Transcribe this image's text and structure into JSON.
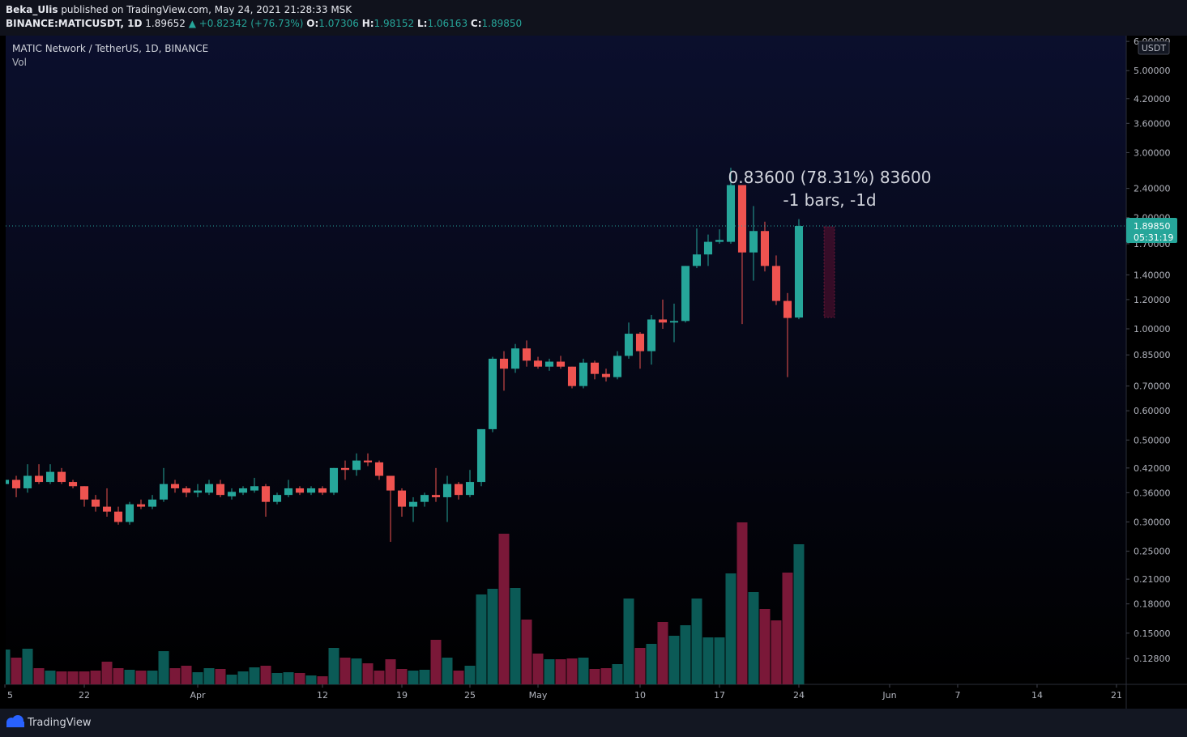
{
  "header": {
    "author": "Beka_Ulis",
    "published": "published on TradingView.com, May 24, 2021 21:28:33 MSK",
    "symbol": "BINANCE:MATICUSDT, 1D",
    "last": "1.89652",
    "change": "▲ +0.82342 (+76.73%)",
    "o_label": "O:",
    "o": "1.07306",
    "h_label": "H:",
    "h": "1.98152",
    "l_label": "L:",
    "l": "1.06163",
    "c_label": "C:",
    "c": "1.89850"
  },
  "footer": {
    "brand": "TradingView"
  },
  "chart_data": {
    "type": "candlestick",
    "title": "MATIC Network / TetherUS, 1D, BINANCE",
    "volume_label": "Vol",
    "measure": "0.83600 (78.31%) 83600",
    "measure_bars": "-1 bars, -1d",
    "price_label": "1.89850",
    "countdown": "05:31:19",
    "currency": "USDT",
    "log_scale": true,
    "grid": false,
    "up_color": "#26a69a",
    "down_color": "#ef5350",
    "volume_up_color": "#0b5a56",
    "volume_down_color": "#7a1838",
    "x": [
      0,
      1,
      2,
      3,
      4,
      5,
      6,
      7,
      8,
      9,
      10,
      11,
      12,
      13,
      14,
      15,
      16,
      17,
      18,
      19,
      20,
      21,
      22,
      23,
      24,
      25,
      26,
      27,
      28,
      29,
      30,
      31,
      32,
      33,
      34,
      35,
      36,
      37,
      38,
      39,
      40,
      41,
      42,
      43,
      44,
      45,
      46,
      47,
      48,
      49,
      50,
      51,
      52,
      53,
      54,
      55,
      56,
      57,
      58,
      59,
      60,
      61,
      62,
      63,
      64,
      65,
      66,
      67,
      68,
      69,
      70
    ],
    "open": [
      0.38,
      0.39,
      0.37,
      0.4,
      0.385,
      0.41,
      0.385,
      0.375,
      0.345,
      0.33,
      0.32,
      0.3,
      0.335,
      0.33,
      0.345,
      0.38,
      0.37,
      0.36,
      0.36,
      0.38,
      0.352,
      0.36,
      0.365,
      0.375,
      0.34,
      0.355,
      0.37,
      0.36,
      0.37,
      0.36,
      0.42,
      0.415,
      0.44,
      0.435,
      0.4,
      0.365,
      0.33,
      0.34,
      0.355,
      0.35,
      0.38,
      0.355,
      0.385,
      0.535,
      0.83,
      0.78,
      0.885,
      0.82,
      0.79,
      0.815,
      0.79,
      0.7,
      0.81,
      0.755,
      0.74,
      0.845,
      0.97,
      0.87,
      1.06,
      1.04,
      1.05,
      1.48,
      1.59,
      1.72,
      1.72,
      2.45,
      1.61,
      1.84,
      1.48,
      1.19,
      1.07306
    ],
    "high": [
      0.42,
      0.4,
      0.43,
      0.43,
      0.43,
      0.42,
      0.39,
      0.375,
      0.355,
      0.37,
      0.33,
      0.34,
      0.345,
      0.355,
      0.42,
      0.39,
      0.375,
      0.38,
      0.39,
      0.39,
      0.37,
      0.375,
      0.395,
      0.38,
      0.36,
      0.39,
      0.375,
      0.375,
      0.375,
      0.42,
      0.44,
      0.46,
      0.46,
      0.44,
      0.4,
      0.37,
      0.35,
      0.36,
      0.42,
      0.4,
      0.385,
      0.415,
      0.535,
      0.84,
      0.87,
      0.91,
      0.93,
      0.84,
      0.83,
      0.845,
      0.79,
      0.83,
      0.82,
      0.78,
      0.87,
      1.04,
      0.98,
      1.09,
      1.2,
      1.17,
      1.48,
      1.87,
      1.8,
      1.86,
      2.73,
      2.45,
      2.15,
      1.95,
      1.58,
      1.25,
      1.98152
    ],
    "low": [
      0.37,
      0.35,
      0.36,
      0.38,
      0.38,
      0.38,
      0.37,
      0.33,
      0.32,
      0.31,
      0.295,
      0.295,
      0.325,
      0.325,
      0.34,
      0.36,
      0.35,
      0.35,
      0.355,
      0.35,
      0.345,
      0.355,
      0.36,
      0.31,
      0.335,
      0.35,
      0.355,
      0.355,
      0.355,
      0.355,
      0.39,
      0.4,
      0.425,
      0.39,
      0.265,
      0.31,
      0.3,
      0.33,
      0.34,
      0.3,
      0.345,
      0.35,
      0.375,
      0.525,
      0.68,
      0.76,
      0.79,
      0.78,
      0.77,
      0.78,
      0.69,
      0.69,
      0.73,
      0.72,
      0.73,
      0.83,
      0.78,
      0.8,
      1.0,
      0.92,
      1.04,
      1.46,
      1.48,
      1.7,
      1.7,
      1.03,
      1.35,
      1.43,
      1.16,
      0.74,
      1.06163
    ],
    "close": [
      0.39,
      0.37,
      0.4,
      0.385,
      0.41,
      0.385,
      0.375,
      0.345,
      0.33,
      0.32,
      0.3,
      0.335,
      0.33,
      0.345,
      0.38,
      0.37,
      0.36,
      0.365,
      0.38,
      0.355,
      0.362,
      0.37,
      0.375,
      0.34,
      0.355,
      0.37,
      0.36,
      0.37,
      0.36,
      0.42,
      0.415,
      0.44,
      0.435,
      0.4,
      0.365,
      0.33,
      0.34,
      0.355,
      0.35,
      0.38,
      0.355,
      0.385,
      0.535,
      0.83,
      0.78,
      0.885,
      0.82,
      0.79,
      0.815,
      0.79,
      0.7,
      0.81,
      0.755,
      0.74,
      0.845,
      0.97,
      0.87,
      1.06,
      1.04,
      1.05,
      1.48,
      1.59,
      1.72,
      1.74,
      2.45,
      1.61,
      1.84,
      1.48,
      1.19,
      1.07,
      1.8985
    ],
    "volume": [
      43,
      33,
      44,
      20,
      17,
      16,
      16,
      16,
      17,
      28,
      20,
      18,
      17,
      17,
      41,
      20,
      23,
      15,
      20,
      19,
      12,
      16,
      21,
      23,
      14,
      15,
      14,
      11,
      10,
      45,
      33,
      32,
      26,
      17,
      31,
      19,
      17,
      18,
      55,
      33,
      17,
      23,
      111,
      118,
      186,
      119,
      80,
      38,
      31,
      31,
      32,
      33,
      19,
      20,
      25,
      106,
      45,
      50,
      77,
      60,
      73,
      106,
      58,
      58,
      137,
      200,
      114,
      93,
      79,
      138,
      173
    ],
    "xlim": [
      0.07,
      98.86
    ],
    "xticks": [
      {
        "value": 0,
        "label": "5"
      },
      {
        "value": 7,
        "label": "22"
      },
      {
        "value": 17,
        "label": "Apr"
      },
      {
        "value": 28,
        "label": "12"
      },
      {
        "value": 35,
        "label": "19"
      },
      {
        "value": 41,
        "label": "25"
      },
      {
        "value": 47,
        "label": "May"
      },
      {
        "value": 56,
        "label": "10"
      },
      {
        "value": 63,
        "label": "17"
      },
      {
        "value": 70,
        "label": "24"
      },
      {
        "value": 78,
        "label": "Jun"
      },
      {
        "value": 84,
        "label": "7"
      },
      {
        "value": 91,
        "label": "14"
      },
      {
        "value": 98,
        "label": "21"
      }
    ],
    "ylim": [
      0.109,
      6.22
    ],
    "yticks": [
      {
        "value": 6,
        "label": "6.00000"
      },
      {
        "value": 5,
        "label": "5.00000"
      },
      {
        "value": 4.2,
        "label": "4.20000"
      },
      {
        "value": 3.6,
        "label": "3.60000"
      },
      {
        "value": 3,
        "label": "3.00000"
      },
      {
        "value": 2.4,
        "label": "2.40000"
      },
      {
        "value": 2,
        "label": "2.00000"
      },
      {
        "value": 1.7,
        "label": "1.70000"
      },
      {
        "value": 1.4,
        "label": "1.40000"
      },
      {
        "value": 1.2,
        "label": "1.20000"
      },
      {
        "value": 1,
        "label": "1.00000"
      },
      {
        "value": 0.85,
        "label": "0.85000"
      },
      {
        "value": 0.7,
        "label": "0.70000"
      },
      {
        "value": 0.6,
        "label": "0.60000"
      },
      {
        "value": 0.5,
        "label": "0.50000"
      },
      {
        "value": 0.42,
        "label": "0.42000"
      },
      {
        "value": 0.36,
        "label": "0.36000"
      },
      {
        "value": 0.3,
        "label": "0.30000"
      },
      {
        "value": 0.25,
        "label": "0.25000"
      },
      {
        "value": 0.21,
        "label": "0.21000"
      },
      {
        "value": 0.18,
        "label": "0.18000"
      },
      {
        "value": 0.15,
        "label": "0.15000"
      },
      {
        "value": 0.128,
        "label": "0.12800"
      }
    ]
  }
}
